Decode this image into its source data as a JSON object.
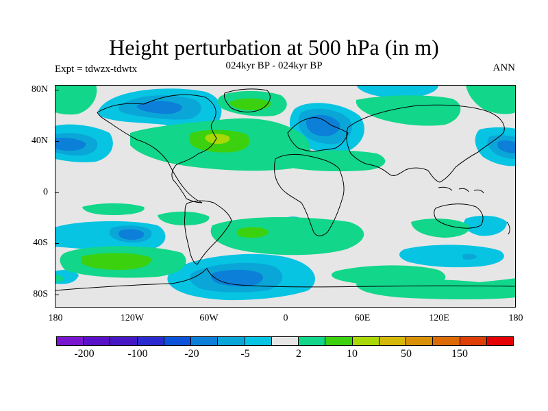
{
  "title": "Height perturbation at 500 hPa (in m)",
  "subtitle": "024kyr BP - 024kyr BP",
  "left_label": "Expt = tdwzx-tdwtx",
  "right_label": "ANN",
  "lat_labels": [
    "80N",
    "40N",
    "0",
    "40S",
    "80S"
  ],
  "lon_labels": [
    "180",
    "120W",
    "60W",
    "0",
    "60E",
    "120E",
    "180"
  ],
  "colorbar": {
    "colors": [
      "#7a16cf",
      "#5a10c8",
      "#4717c6",
      "#2b2ad0",
      "#0d52da",
      "#0c7fd8",
      "#0aa6d8",
      "#07c4e2",
      "#e6e6e6",
      "#12d68a",
      "#3bd10e",
      "#a8d806",
      "#d4b80a",
      "#d99208",
      "#dc6b05",
      "#df3e06",
      "#e40005"
    ],
    "labels": [
      "-200",
      "-100",
      "-20",
      "-5",
      "2",
      "10",
      "50",
      "150"
    ]
  },
  "colors": {
    "background": "#e6e6e6",
    "neg_light": "#07c4e2",
    "neg_mid": "#0aa6d8",
    "neg_dark": "#0c7fd8",
    "pos_light": "#12d68a",
    "pos_mid": "#3bd10e",
    "pos_dark": "#a8d806"
  }
}
